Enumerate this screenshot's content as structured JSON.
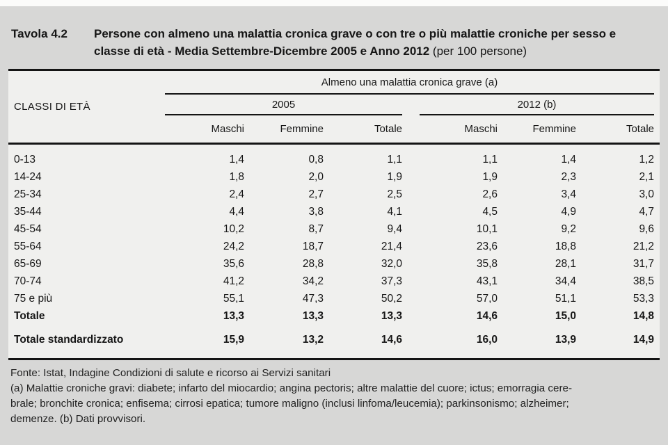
{
  "title": {
    "label": "Tavola 4.2",
    "main": "Persone con almeno una malattia cronica grave o con tre o più malattie croniche per sesso e classe di età - Media Settembre-Dicembre 2005 e Anno 2012",
    "unit": " (per 100 persone)"
  },
  "table": {
    "row_header": "CLASSI DI ETÀ",
    "span_header": "Almeno una malattia cronica grave (a)",
    "groups": [
      {
        "label": "2005",
        "columns": [
          "Maschi",
          "Femmine",
          "Totale"
        ]
      },
      {
        "label": "2012 (b)",
        "columns": [
          "Maschi",
          "Femmine",
          "Totale"
        ]
      }
    ],
    "rows": [
      {
        "label": "0-13",
        "values": [
          "1,4",
          "0,8",
          "1,1",
          "1,1",
          "1,4",
          "1,2"
        ],
        "bold": false,
        "spaced": false
      },
      {
        "label": "14-24",
        "values": [
          "1,8",
          "2,0",
          "1,9",
          "1,9",
          "2,3",
          "2,1"
        ],
        "bold": false,
        "spaced": false
      },
      {
        "label": "25-34",
        "values": [
          "2,4",
          "2,7",
          "2,5",
          "2,6",
          "3,4",
          "3,0"
        ],
        "bold": false,
        "spaced": false
      },
      {
        "label": "35-44",
        "values": [
          "4,4",
          "3,8",
          "4,1",
          "4,5",
          "4,9",
          "4,7"
        ],
        "bold": false,
        "spaced": false
      },
      {
        "label": "45-54",
        "values": [
          "10,2",
          "8,7",
          "9,4",
          "10,1",
          "9,2",
          "9,6"
        ],
        "bold": false,
        "spaced": false
      },
      {
        "label": "55-64",
        "values": [
          "24,2",
          "18,7",
          "21,4",
          "23,6",
          "18,8",
          "21,2"
        ],
        "bold": false,
        "spaced": false
      },
      {
        "label": "65-69",
        "values": [
          "35,6",
          "28,8",
          "32,0",
          "35,8",
          "28,1",
          "31,7"
        ],
        "bold": false,
        "spaced": false
      },
      {
        "label": "70-74",
        "values": [
          "41,2",
          "34,2",
          "37,3",
          "43,1",
          "34,4",
          "38,5"
        ],
        "bold": false,
        "spaced": false
      },
      {
        "label": "75 e più",
        "values": [
          "55,1",
          "47,3",
          "50,2",
          "57,0",
          "51,1",
          "53,3"
        ],
        "bold": false,
        "spaced": false
      },
      {
        "label": "Totale",
        "values": [
          "13,3",
          "13,3",
          "13,3",
          "14,6",
          "15,0",
          "14,8"
        ],
        "bold": true,
        "spaced": false
      },
      {
        "label": "Totale standardizzato",
        "values": [
          "15,9",
          "13,2",
          "14,6",
          "16,0",
          "13,9",
          "14,9"
        ],
        "bold": true,
        "spaced": true
      }
    ]
  },
  "footer": {
    "source": "Fonte: Istat, Indagine Condizioni di salute e ricorso ai Servizi sanitari",
    "note_lines": [
      "(a) Malattie croniche gravi: diabete; infarto del miocardio; angina pectoris; altre malattie del cuore; ictus; emorragia cere-",
      "brale; bronchite cronica; enfisema; cirrosi epatica; tumore maligno (inclusi linfoma/leucemia); parkinsonismo; alzheimer;",
      "demenze.   (b) Dati provvisori."
    ]
  }
}
